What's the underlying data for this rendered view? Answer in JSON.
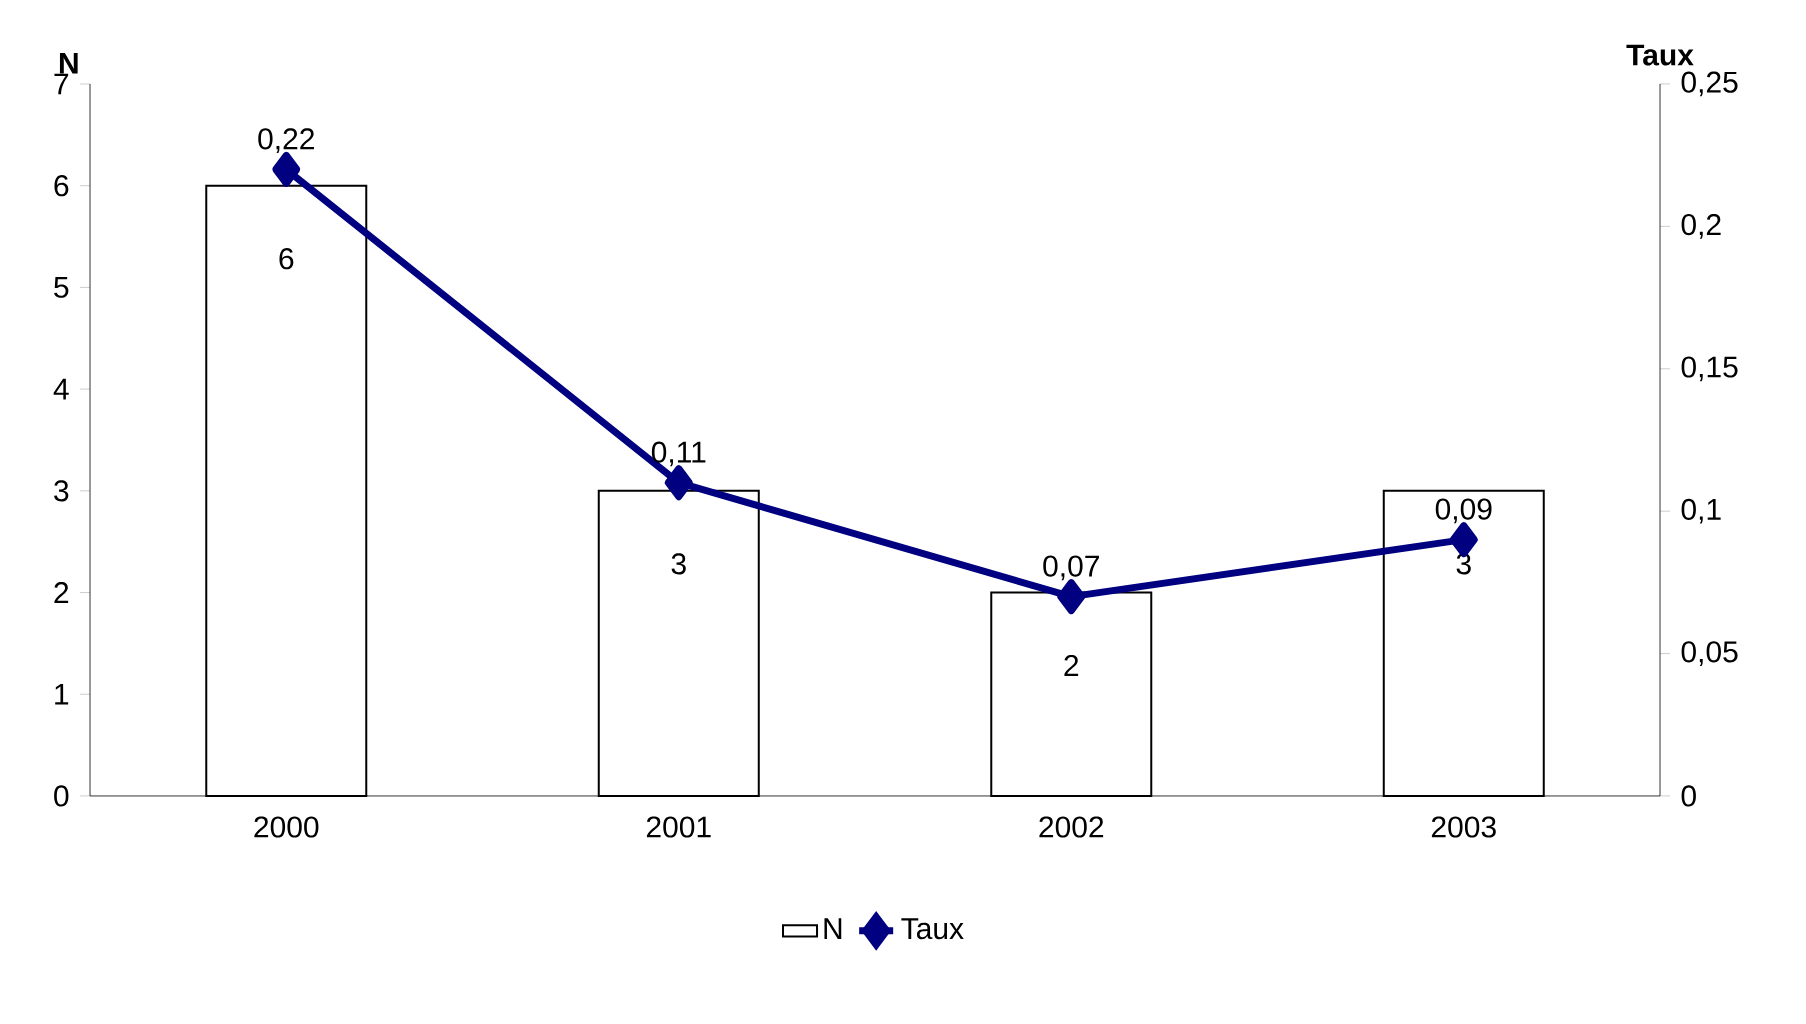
{
  "chart_data": {
    "type": "bar",
    "ylabel": "N",
    "y2label": "Taux",
    "categories": [
      "2000",
      "2001",
      "2002",
      "2003"
    ],
    "series": [
      {
        "name": "N",
        "color": "#ffffff",
        "values": [
          6,
          3,
          2,
          3
        ],
        "value_labels": [
          "6",
          "3",
          "2",
          "3"
        ]
      },
      {
        "name": "Taux",
        "type": "line",
        "axis": "y2",
        "color": "#000080",
        "marker": "diamond",
        "values": [
          0.22,
          0.11,
          0.07,
          0.09
        ],
        "value_labels": [
          "0,22",
          "0,11",
          "0,07",
          "0,09"
        ]
      }
    ],
    "ylim": [
      0,
      7
    ],
    "yticks": [
      0,
      1,
      2,
      3,
      4,
      5,
      6,
      7
    ],
    "y2lim": [
      0,
      0.25
    ],
    "y2ticks": [
      0,
      {
        "value": 0.05,
        "label": "0,05"
      },
      {
        "value": 0.1,
        "label": "0,1"
      },
      {
        "value": 0.15,
        "label": "0,15"
      },
      {
        "value": 0.2,
        "label": "0,2"
      },
      {
        "value": 0.25,
        "label": "0,25"
      }
    ],
    "legend": "bottom",
    "grid": false
  }
}
